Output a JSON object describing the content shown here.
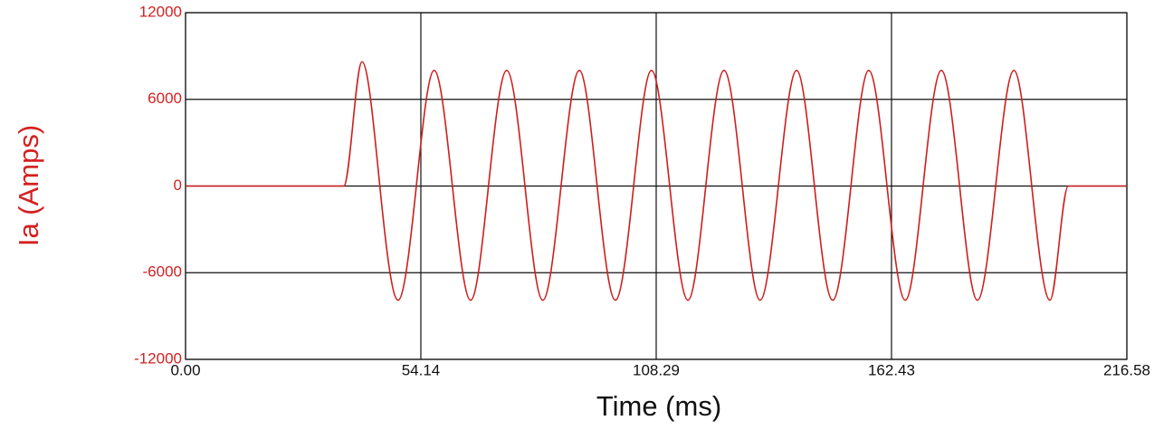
{
  "chart_data": {
    "type": "line",
    "xlabel": "Time (ms)",
    "ylabel": "Ia (Amps)",
    "color": "#cc1f1f",
    "x": [
      0,
      36.4,
      40.6,
      44.7,
      48.9,
      53.1,
      57.2,
      61.4,
      65.6,
      69.7,
      73.9,
      78.1,
      82.2,
      86.4,
      90.6,
      94.7,
      98.9,
      103.1,
      107.2,
      111.4,
      115.6,
      119.7,
      123.9,
      128.1,
      132.2,
      136.4,
      140.6,
      144.7,
      148.9,
      153.1,
      157.2,
      161.4,
      165.6,
      169.7,
      173.9,
      178.1,
      182.2,
      186.4,
      190.6,
      194.7,
      198.9,
      203.1,
      216.58
    ],
    "values": [
      0,
      0,
      8600,
      0,
      -7900,
      0,
      8000,
      0,
      -7900,
      0,
      8000,
      0,
      -7900,
      0,
      8000,
      0,
      -7900,
      0,
      8000,
      0,
      -7900,
      0,
      8000,
      0,
      -7900,
      0,
      8000,
      0,
      -7900,
      0,
      8000,
      0,
      -7900,
      0,
      8000,
      0,
      -7900,
      0,
      8000,
      0,
      -7900,
      0,
      0
    ],
    "xlim": [
      0,
      216.58
    ],
    "xticks": [
      {
        "value": 0,
        "label": "0.00"
      },
      54.14,
      108.29,
      162.43,
      216.58
    ],
    "ylim": [
      -12000,
      12000
    ],
    "yticks": [
      -12000,
      -6000,
      0,
      6000,
      12000
    ],
    "grid": true
  }
}
